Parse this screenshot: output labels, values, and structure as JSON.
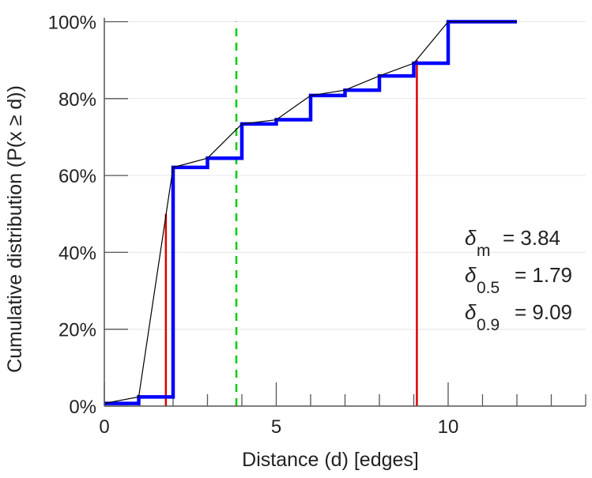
{
  "chart_data": {
    "type": "line",
    "title": "",
    "xlabel": "Distance (d) [edges]",
    "ylabel": "Cumulative distribution (P(x ≥ d))",
    "xlim": [
      0,
      14
    ],
    "ylim": [
      0,
      100
    ],
    "xticks": [
      0,
      5,
      10
    ],
    "xtick_labels": [
      "0",
      "5",
      "10"
    ],
    "yticks": [
      0,
      20,
      40,
      60,
      80,
      100
    ],
    "ytick_labels": [
      "0%",
      "20%",
      "40%",
      "60%",
      "80%",
      "100%"
    ],
    "grid": "horizontal",
    "series": [
      {
        "name": "cumulative-step",
        "style": "step",
        "color": "#0000ff",
        "x": [
          0,
          1,
          2,
          3,
          4,
          5,
          6,
          7,
          8,
          9,
          10,
          12
        ],
        "y": [
          0.7,
          2.4,
          62.1,
          64.5,
          73.4,
          74.5,
          80.8,
          82.2,
          85.9,
          89.2,
          100,
          100
        ]
      },
      {
        "name": "interpolated",
        "style": "line",
        "color": "#000000",
        "x": [
          0,
          1,
          2,
          3,
          4,
          5,
          6,
          7,
          8,
          9,
          10,
          12
        ],
        "y": [
          0.7,
          2.4,
          62.1,
          64.5,
          73.4,
          74.5,
          80.8,
          82.2,
          85.9,
          89.2,
          100,
          100
        ]
      }
    ],
    "markers": [
      {
        "name": "median",
        "x": 1.79,
        "y_top": 50,
        "color": "#dd0000",
        "style": "solid"
      },
      {
        "name": "p90",
        "x": 9.09,
        "y_top": 90,
        "color": "#dd0000",
        "style": "solid"
      },
      {
        "name": "mean",
        "x": 3.84,
        "y_top": 100,
        "color": "#00cc00",
        "style": "dashed"
      }
    ],
    "annotations": [
      {
        "symbol": "δ",
        "sub": "m",
        "text": "= 3.84"
      },
      {
        "symbol": "δ",
        "sub": "0.5",
        "text": "= 1.79"
      },
      {
        "symbol": "δ",
        "sub": "0.9",
        "text": "= 9.09"
      }
    ]
  }
}
